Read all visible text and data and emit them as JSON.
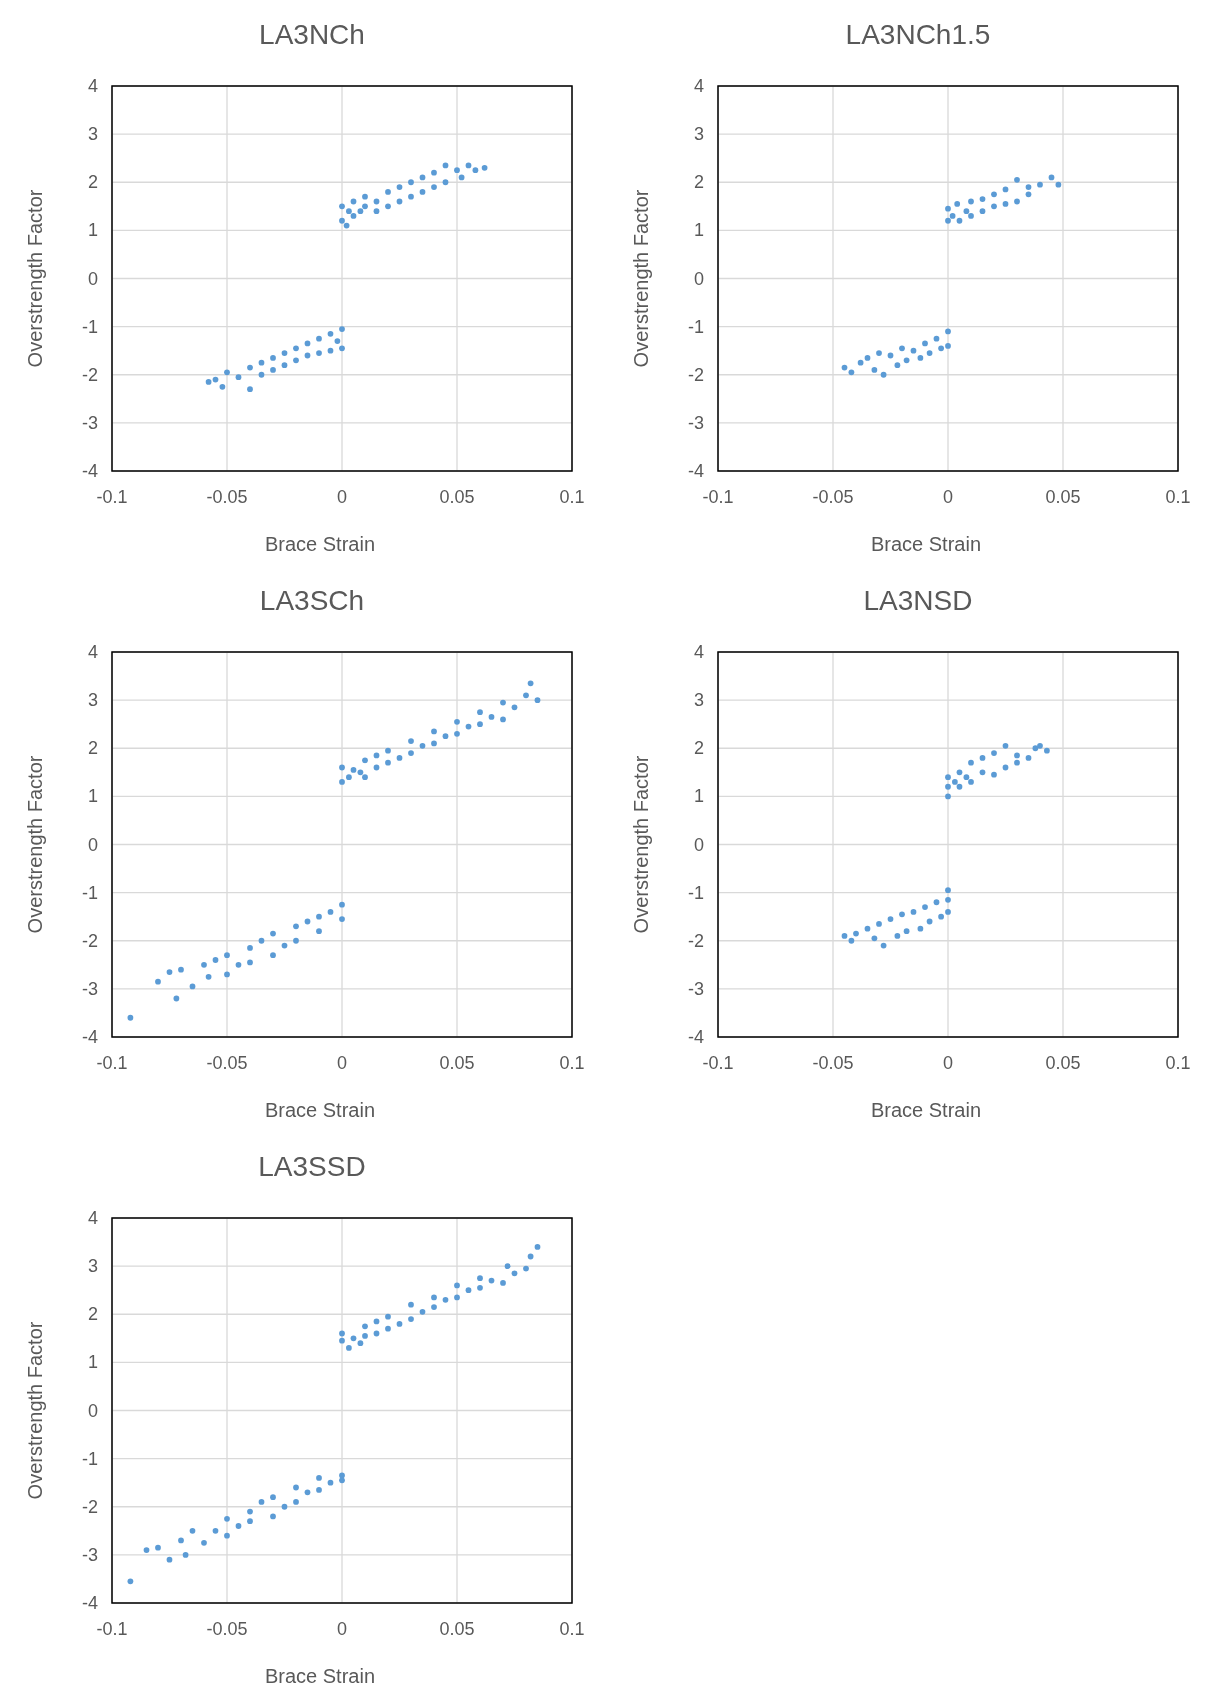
{
  "chart_data": [
    {
      "type": "scatter",
      "title": "LA3NCh",
      "xlabel": "Brace Strain",
      "ylabel": "Overstrength Factor",
      "xlim": [
        -0.1,
        0.1
      ],
      "xticks": [
        -0.1,
        -0.05,
        0,
        0.05,
        0.1
      ],
      "ylim": [
        -4,
        4
      ],
      "yticks": [
        -4,
        -3,
        -2,
        -1,
        0,
        1,
        2,
        3,
        4
      ],
      "grid": true,
      "marker": "circle",
      "series": [
        {
          "color": "#5b9bd5",
          "x": [
            0,
            0,
            0.002,
            0.003,
            0.005,
            0.005,
            0.008,
            0.01,
            0.01,
            0.015,
            0.015,
            0.02,
            0.02,
            0.025,
            0.025,
            0.03,
            0.03,
            0.035,
            0.035,
            0.04,
            0.04,
            0.045,
            0.045,
            0.05,
            0.052,
            0.055,
            0.058,
            0.062,
            -0.058,
            -0.055,
            -0.052,
            -0.05,
            -0.045,
            -0.04,
            -0.04,
            -0.035,
            -0.035,
            -0.03,
            -0.03,
            -0.025,
            -0.025,
            -0.02,
            -0.02,
            -0.015,
            -0.015,
            -0.01,
            -0.01,
            -0.005,
            -0.005,
            0,
            0,
            -0.002
          ],
          "values": [
            1.2,
            1.5,
            1.1,
            1.4,
            1.3,
            1.6,
            1.4,
            1.5,
            1.7,
            1.6,
            1.4,
            1.8,
            1.5,
            1.9,
            1.6,
            2.0,
            1.7,
            2.1,
            1.8,
            2.2,
            1.9,
            2.35,
            2.0,
            2.25,
            2.1,
            2.35,
            2.25,
            2.3,
            -2.15,
            -2.1,
            -2.25,
            -1.95,
            -2.05,
            -2.3,
            -1.85,
            -2.0,
            -1.75,
            -1.9,
            -1.65,
            -1.8,
            -1.55,
            -1.7,
            -1.45,
            -1.6,
            -1.35,
            -1.55,
            -1.25,
            -1.5,
            -1.15,
            -1.05,
            -1.45,
            -1.3
          ]
        }
      ]
    },
    {
      "type": "scatter",
      "title": "LA3NCh1.5",
      "xlabel": "Brace Strain",
      "ylabel": "Overstrength Factor",
      "xlim": [
        -0.1,
        0.1
      ],
      "xticks": [
        -0.1,
        -0.05,
        0,
        0.05,
        0.1
      ],
      "ylim": [
        -4,
        4
      ],
      "yticks": [
        -4,
        -3,
        -2,
        -1,
        0,
        1,
        2,
        3,
        4
      ],
      "grid": true,
      "marker": "circle",
      "series": [
        {
          "color": "#5b9bd5",
          "x": [
            0,
            0,
            0.002,
            0.004,
            0.005,
            0.008,
            0.01,
            0.01,
            0.015,
            0.015,
            0.02,
            0.02,
            0.025,
            0.025,
            0.03,
            0.03,
            0.035,
            0.035,
            0.04,
            0.045,
            0.048,
            -0.045,
            -0.042,
            -0.038,
            -0.035,
            -0.032,
            -0.03,
            -0.028,
            -0.025,
            -0.022,
            -0.02,
            -0.018,
            -0.015,
            -0.012,
            -0.01,
            -0.008,
            -0.005,
            -0.003,
            0,
            0
          ],
          "values": [
            1.2,
            1.45,
            1.3,
            1.55,
            1.2,
            1.4,
            1.3,
            1.6,
            1.4,
            1.65,
            1.5,
            1.75,
            1.55,
            1.85,
            1.6,
            2.05,
            1.75,
            1.9,
            1.95,
            2.1,
            1.95,
            -1.85,
            -1.95,
            -1.75,
            -1.65,
            -1.9,
            -1.55,
            -2.0,
            -1.6,
            -1.8,
            -1.45,
            -1.7,
            -1.5,
            -1.65,
            -1.35,
            -1.55,
            -1.25,
            -1.45,
            -1.1,
            -1.4
          ]
        }
      ]
    },
    {
      "type": "scatter",
      "title": "LA3SCh",
      "xlabel": "Brace Strain",
      "ylabel": "Overstrength Factor",
      "xlim": [
        -0.1,
        0.1
      ],
      "xticks": [
        -0.1,
        -0.05,
        0,
        0.05,
        0.1
      ],
      "ylim": [
        -4,
        4
      ],
      "yticks": [
        -4,
        -3,
        -2,
        -1,
        0,
        1,
        2,
        3,
        4
      ],
      "grid": true,
      "marker": "circle",
      "series": [
        {
          "color": "#5b9bd5",
          "x": [
            0,
            0,
            0.003,
            0.005,
            0.008,
            0.01,
            0.01,
            0.015,
            0.015,
            0.02,
            0.02,
            0.025,
            0.03,
            0.03,
            0.035,
            0.04,
            0.04,
            0.045,
            0.05,
            0.05,
            0.055,
            0.06,
            0.06,
            0.065,
            0.07,
            0.07,
            0.075,
            0.08,
            0.082,
            0.085,
            -0.092,
            -0.08,
            -0.075,
            -0.072,
            -0.07,
            -0.065,
            -0.06,
            -0.058,
            -0.055,
            -0.05,
            -0.05,
            -0.045,
            -0.04,
            -0.04,
            -0.035,
            -0.03,
            -0.03,
            -0.025,
            -0.02,
            -0.02,
            -0.015,
            -0.01,
            -0.01,
            -0.005,
            0,
            0
          ],
          "values": [
            1.3,
            1.6,
            1.4,
            1.55,
            1.5,
            1.4,
            1.75,
            1.6,
            1.85,
            1.7,
            1.95,
            1.8,
            1.9,
            2.15,
            2.05,
            2.1,
            2.35,
            2.25,
            2.3,
            2.55,
            2.45,
            2.5,
            2.75,
            2.65,
            2.6,
            2.95,
            2.85,
            3.1,
            3.35,
            3.0,
            -3.6,
            -2.85,
            -2.65,
            -3.2,
            -2.6,
            -2.95,
            -2.5,
            -2.75,
            -2.4,
            -2.7,
            -2.3,
            -2.5,
            -2.15,
            -2.45,
            -2.0,
            -2.3,
            -1.85,
            -2.1,
            -1.7,
            -2.0,
            -1.6,
            -1.5,
            -1.8,
            -1.4,
            -1.25,
            -1.55
          ]
        }
      ]
    },
    {
      "type": "scatter",
      "title": "LA3NSD",
      "xlabel": "Brace Strain",
      "ylabel": "Overstrength Factor",
      "xlim": [
        -0.1,
        0.1
      ],
      "xticks": [
        -0.1,
        -0.05,
        0,
        0.05,
        0.1
      ],
      "ylim": [
        -4,
        4
      ],
      "yticks": [
        -4,
        -3,
        -2,
        -1,
        0,
        1,
        2,
        3,
        4
      ],
      "grid": true,
      "marker": "circle",
      "series": [
        {
          "color": "#5b9bd5",
          "x": [
            0,
            0,
            0,
            0.003,
            0.005,
            0.005,
            0.008,
            0.01,
            0.01,
            0.015,
            0.015,
            0.02,
            0.02,
            0.025,
            0.025,
            0.03,
            0.03,
            0.035,
            0.038,
            0.04,
            0.043,
            -0.045,
            -0.042,
            -0.04,
            -0.035,
            -0.032,
            -0.03,
            -0.028,
            -0.025,
            -0.022,
            -0.02,
            -0.018,
            -0.015,
            -0.012,
            -0.01,
            -0.008,
            -0.005,
            -0.003,
            0,
            0,
            0
          ],
          "values": [
            1.0,
            1.4,
            1.2,
            1.3,
            1.5,
            1.2,
            1.4,
            1.3,
            1.7,
            1.5,
            1.8,
            1.45,
            1.9,
            1.6,
            2.05,
            1.7,
            1.85,
            1.8,
            2.0,
            2.05,
            1.95,
            -1.9,
            -2.0,
            -1.85,
            -1.75,
            -1.95,
            -1.65,
            -2.1,
            -1.55,
            -1.9,
            -1.45,
            -1.8,
            -1.4,
            -1.75,
            -1.3,
            -1.6,
            -1.2,
            -1.5,
            -0.95,
            -1.4,
            -1.15
          ]
        }
      ]
    },
    {
      "type": "scatter",
      "title": "LA3SSD",
      "xlabel": "Brace Strain",
      "ylabel": "Overstrength Factor",
      "xlim": [
        -0.1,
        0.1
      ],
      "xticks": [
        -0.1,
        -0.05,
        0,
        0.05,
        0.1
      ],
      "ylim": [
        -4,
        4
      ],
      "yticks": [
        -4,
        -3,
        -2,
        -1,
        0,
        1,
        2,
        3,
        4
      ],
      "grid": true,
      "marker": "circle",
      "series": [
        {
          "color": "#5b9bd5",
          "x": [
            0,
            0,
            0.003,
            0.005,
            0.008,
            0.01,
            0.01,
            0.015,
            0.015,
            0.02,
            0.02,
            0.025,
            0.03,
            0.03,
            0.035,
            0.04,
            0.04,
            0.045,
            0.05,
            0.05,
            0.055,
            0.06,
            0.06,
            0.065,
            0.07,
            0.072,
            0.075,
            0.08,
            0.082,
            0.085,
            -0.092,
            -0.085,
            -0.08,
            -0.075,
            -0.07,
            -0.068,
            -0.065,
            -0.06,
            -0.055,
            -0.05,
            -0.05,
            -0.045,
            -0.04,
            -0.04,
            -0.035,
            -0.03,
            -0.03,
            -0.025,
            -0.02,
            -0.02,
            -0.015,
            -0.01,
            -0.01,
            -0.005,
            0,
            0
          ],
          "values": [
            1.45,
            1.6,
            1.3,
            1.5,
            1.4,
            1.55,
            1.75,
            1.6,
            1.85,
            1.7,
            1.95,
            1.8,
            1.9,
            2.2,
            2.05,
            2.15,
            2.35,
            2.3,
            2.35,
            2.6,
            2.5,
            2.55,
            2.75,
            2.7,
            2.65,
            3.0,
            2.85,
            2.95,
            3.2,
            3.4,
            -3.55,
            -2.9,
            -2.85,
            -3.1,
            -2.7,
            -3.0,
            -2.5,
            -2.75,
            -2.5,
            -2.6,
            -2.25,
            -2.4,
            -2.1,
            -2.3,
            -1.9,
            -2.2,
            -1.8,
            -2.0,
            -1.6,
            -1.9,
            -1.7,
            -1.4,
            -1.65,
            -1.5,
            -1.35,
            -1.45
          ]
        }
      ]
    }
  ]
}
